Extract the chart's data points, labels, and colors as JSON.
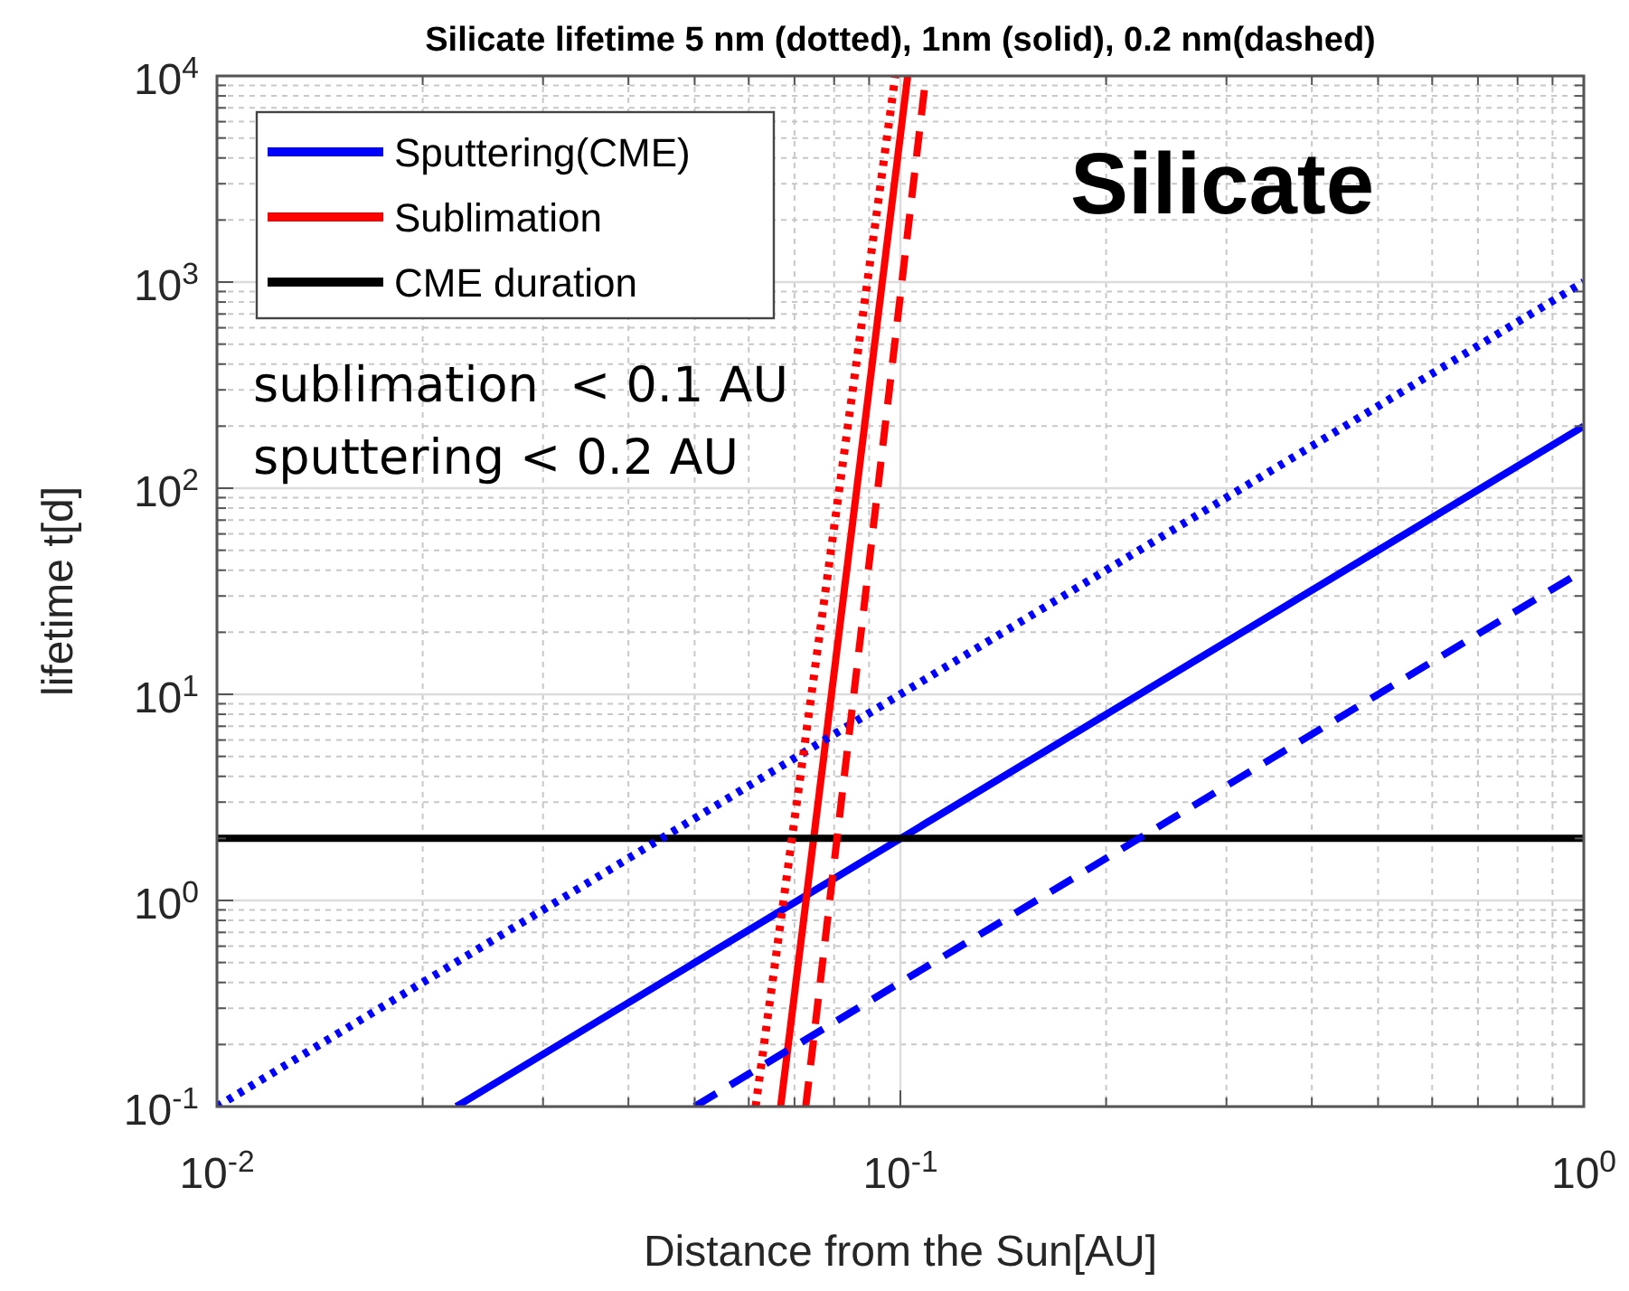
{
  "chart_data": {
    "type": "line",
    "title": "Silicate lifetime 5 nm (dotted), 1nm (solid), 0.2 nm(dashed)",
    "xlabel": "Distance from the Sun[AU]",
    "ylabel": "lifetime t[d]",
    "log": "xy",
    "grid": true,
    "legend": "top left",
    "xlim": [
      0.01,
      1
    ],
    "ylim": [
      0.1,
      10000
    ],
    "xticks": [
      {
        "value": 0.01,
        "label": "10$^{-2}$"
      },
      {
        "value": 0.1,
        "label": "10$^{-1}$"
      },
      {
        "value": 1,
        "label": "10$^{0}$"
      }
    ],
    "yticks": [
      {
        "value": 0.1,
        "label": "10$^{-1}$"
      },
      {
        "value": 1,
        "label": "10$^{0}$"
      },
      {
        "value": 10,
        "label": "10$^{1}$"
      },
      {
        "value": 100,
        "label": "10$^{2}$"
      },
      {
        "value": 1000,
        "label": "10$^{3}$"
      },
      {
        "value": 10000,
        "label": "10$^{4}$"
      }
    ],
    "series": [
      {
        "name": "Sputtering(CME)",
        "color": "#0000ff",
        "line_style": "solid",
        "x": [
          0.0224,
          1
        ],
        "values": [
          0.1,
          200
        ]
      },
      {
        "name": "Sublimation",
        "color": "#ff0000",
        "line_style": "solid",
        "x": [
          0.0668,
          0.1025
        ],
        "values": [
          0.1,
          10000
        ]
      },
      {
        "name": "CME duration",
        "color": "#000000",
        "line_style": "solid",
        "x": [
          0.01,
          1
        ],
        "values": [
          2,
          2
        ]
      },
      {
        "color": "#0000ff",
        "line_style": "dotted",
        "x": [
          0.01,
          1
        ],
        "values": [
          0.1,
          1000
        ]
      },
      {
        "color": "#0000ff",
        "line_style": "dashed",
        "x": [
          0.05,
          1
        ],
        "values": [
          0.1,
          40
        ]
      },
      {
        "color": "#ff0000",
        "line_style": "dotted",
        "x": [
          0.0614,
          0.0983
        ],
        "values": [
          0.1,
          10000
        ]
      },
      {
        "color": "#ff0000",
        "line_style": "dashed",
        "x": [
          0.0727,
          0.109
        ],
        "values": [
          0.1,
          10000
        ]
      }
    ],
    "annotations": [
      "Silicate",
      "sublimation  < 0.1 AU",
      "sputtering < 0.2 AU"
    ]
  }
}
